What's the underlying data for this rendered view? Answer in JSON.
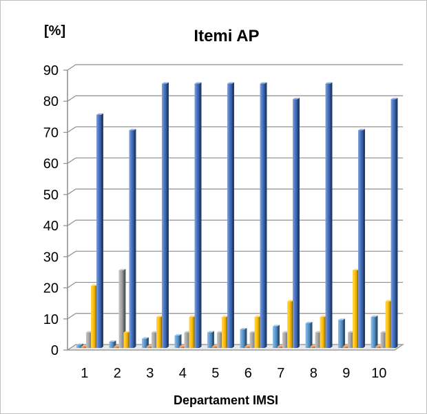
{
  "chart_data": {
    "type": "bar",
    "title": "Itemi AP",
    "ylabel": "[%]",
    "xlabel": "Departament IMSI",
    "categories": [
      "1",
      "2",
      "3",
      "4",
      "5",
      "6",
      "7",
      "8",
      "9",
      "10"
    ],
    "y_ticks": [
      "0",
      "10",
      "20",
      "30",
      "40",
      "50",
      "60",
      "70",
      "80",
      "90"
    ],
    "ylim": [
      0,
      90
    ],
    "grid": true,
    "legend": "none",
    "series": [
      {
        "values": [
          1,
          2,
          3,
          4,
          5,
          6,
          7,
          8,
          9,
          10
        ],
        "color": "#5b9bd5"
      },
      {
        "values": [
          0.5,
          0.5,
          0.5,
          0.5,
          0.5,
          0.5,
          0.5,
          0.5,
          0.5,
          0.5
        ],
        "color": "#ed7d31"
      },
      {
        "values": [
          5,
          25,
          5,
          5,
          5,
          5,
          5,
          5,
          5,
          5
        ],
        "color": "#a5a5a5"
      },
      {
        "values": [
          20,
          5,
          10,
          10,
          10,
          10,
          15,
          10,
          25,
          15
        ],
        "color": "#ffc000"
      },
      {
        "values": [
          75,
          70,
          85,
          85,
          85,
          85,
          80,
          85,
          70,
          80
        ],
        "color": "#4472c4"
      }
    ]
  }
}
